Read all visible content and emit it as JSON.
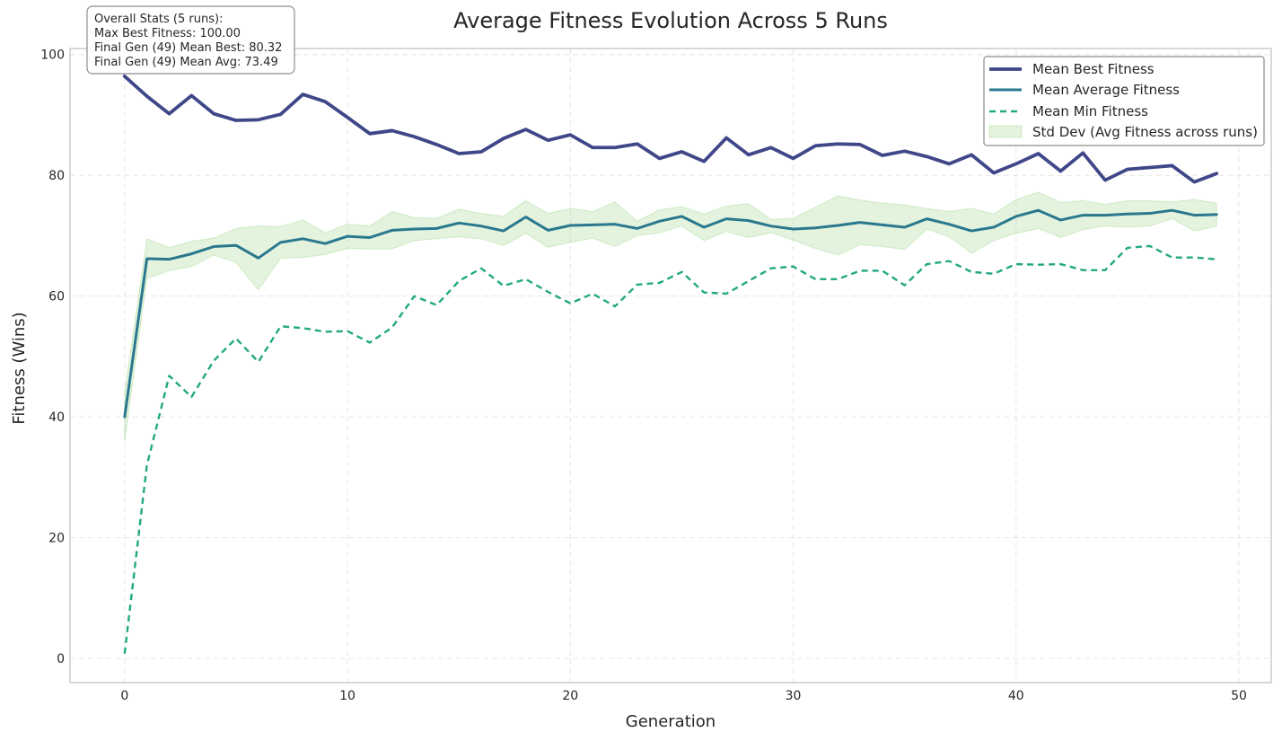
{
  "chart_data": {
    "type": "line",
    "title": "Average Fitness Evolution Across 5 Runs",
    "xlabel": "Generation",
    "ylabel": "Fitness (Wins)",
    "xlim": [
      -2.45,
      51.45
    ],
    "ylim": [
      -4,
      101
    ],
    "xticks": [
      0,
      10,
      20,
      30,
      40,
      50
    ],
    "yticks": [
      0,
      20,
      40,
      60,
      80,
      100
    ],
    "grid": true,
    "legend_position": "top-right",
    "x": [
      0,
      1,
      2,
      3,
      4,
      5,
      6,
      7,
      8,
      9,
      10,
      11,
      12,
      13,
      14,
      15,
      16,
      17,
      18,
      19,
      20,
      21,
      22,
      23,
      24,
      25,
      26,
      27,
      28,
      29,
      30,
      31,
      32,
      33,
      34,
      35,
      36,
      37,
      38,
      39,
      40,
      41,
      42,
      43,
      44,
      45,
      46,
      47,
      48,
      49
    ],
    "series": [
      {
        "name": "Mean Best Fitness",
        "color": "#3f4788",
        "style": "solid",
        "values": [
          96.4,
          93.1,
          90.2,
          93.2,
          90.2,
          89.1,
          89.2,
          90.1,
          93.4,
          92.2,
          89.6,
          86.9,
          87.4,
          86.4,
          85.1,
          83.6,
          83.9,
          86.1,
          87.6,
          85.8,
          86.7,
          84.6,
          84.6,
          85.2,
          82.8,
          83.9,
          82.3,
          86.2,
          83.4,
          84.6,
          82.8,
          84.9,
          85.2,
          85.1,
          83.3,
          84.0,
          83.1,
          81.9,
          83.4,
          80.4,
          81.9,
          83.6,
          80.7,
          83.7,
          79.2,
          81.0,
          81.3,
          81.6,
          78.9,
          80.3
        ]
      },
      {
        "name": "Mean Average Fitness",
        "color": "#2a788e",
        "style": "solid",
        "values": [
          40.0,
          66.2,
          66.1,
          67.0,
          68.2,
          68.4,
          66.3,
          68.9,
          69.5,
          68.7,
          69.9,
          69.7,
          70.9,
          71.1,
          71.2,
          72.1,
          71.6,
          70.8,
          73.1,
          70.9,
          71.7,
          71.8,
          71.9,
          71.2,
          72.4,
          73.2,
          71.4,
          72.8,
          72.5,
          71.6,
          71.1,
          71.3,
          71.7,
          72.2,
          71.8,
          71.4,
          72.8,
          71.9,
          70.8,
          71.4,
          73.2,
          74.2,
          72.6,
          73.4,
          73.4,
          73.6,
          73.7,
          74.2,
          73.4,
          73.5
        ]
      },
      {
        "name": "Mean Min Fitness",
        "color": "#22a884",
        "style": "dashed",
        "values": [
          0.8,
          32.0,
          46.8,
          43.3,
          49.3,
          53.0,
          49.1,
          55.0,
          54.7,
          54.1,
          54.2,
          52.3,
          54.8,
          60.0,
          58.5,
          62.5,
          64.6,
          61.7,
          62.8,
          60.7,
          58.8,
          60.4,
          58.3,
          61.9,
          62.2,
          64.0,
          60.6,
          60.4,
          62.5,
          64.6,
          64.9,
          62.8,
          62.8,
          64.2,
          64.2,
          61.8,
          65.3,
          65.8,
          64.0,
          63.7,
          65.3,
          65.2,
          65.3,
          64.3,
          64.3,
          68.0,
          68.3,
          66.4,
          66.4,
          66.1
        ]
      },
      {
        "name": "Std Dev (Avg Fitness across runs)",
        "color": "#8fd17a",
        "style": "band",
        "lower": [
          36.0,
          62.9,
          64.2,
          64.9,
          66.8,
          65.6,
          61.0,
          66.3,
          66.4,
          66.9,
          67.9,
          67.8,
          67.8,
          69.2,
          69.5,
          69.8,
          69.5,
          68.4,
          70.4,
          68.1,
          68.9,
          69.6,
          68.2,
          70.0,
          70.5,
          71.6,
          69.2,
          70.7,
          69.7,
          70.5,
          69.3,
          67.9,
          66.8,
          68.5,
          68.2,
          67.7,
          71.1,
          69.8,
          67.1,
          69.2,
          70.4,
          71.2,
          69.7,
          71.0,
          71.6,
          71.4,
          71.6,
          72.8,
          70.8,
          71.6
        ],
        "upper": [
          44.0,
          69.5,
          68.0,
          69.1,
          69.6,
          71.2,
          71.6,
          71.5,
          72.6,
          70.5,
          71.9,
          71.6,
          74.0,
          73.0,
          72.9,
          74.4,
          73.7,
          73.2,
          75.8,
          73.7,
          74.5,
          74.0,
          75.6,
          72.4,
          74.3,
          74.8,
          73.6,
          74.9,
          75.3,
          72.7,
          72.9,
          74.7,
          76.6,
          75.9,
          75.4,
          75.1,
          74.5,
          74.0,
          74.5,
          73.6,
          76.0,
          77.2,
          75.5,
          75.8,
          75.2,
          75.8,
          75.8,
          75.6,
          76.0,
          75.4
        ]
      }
    ],
    "stats_box": {
      "lines": [
        "Overall Stats (5 runs):",
        "Max Best Fitness: 100.00",
        "Final Gen (49) Mean Best: 80.32",
        "Final Gen (49) Mean Avg: 73.49"
      ]
    }
  }
}
